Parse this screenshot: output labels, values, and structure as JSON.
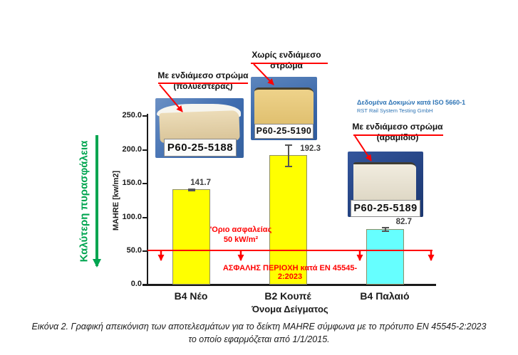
{
  "chart_data": {
    "type": "bar",
    "categories": [
      "B4 Νέο",
      "B2 Κουπέ",
      "B4 Παλαιό"
    ],
    "values": [
      141.7,
      192.3,
      82.7
    ],
    "error_bars": [
      2,
      17,
      4
    ],
    "bar_colors": [
      "#FFFF00",
      "#FFFF00",
      "#66FFFF"
    ],
    "xlabel": "Όνομα Δείγματος",
    "ylabel": "MAHRE [kw/m2]",
    "ylim": [
      0,
      250
    ],
    "yticks": [
      "250.0",
      "200.0",
      "150.0",
      "100.0",
      "50.0",
      "0.0"
    ],
    "grid": "off",
    "legend": "none",
    "safety_line": {
      "value": 50,
      "label_line1": "'Οριο ασφαλείας",
      "label_line2": "50 kW/m²",
      "region_label": "ΑΣΦΑΛΗΣ ΠΕΡΙΟΧΗ κατά EN 45545-2:2023"
    }
  },
  "annotations": {
    "better_fire_safety": "Καλύτερη πυρασφάλεια",
    "callout_polyester": {
      "line1": "Με ενδιάμεσο στρώμα",
      "line2": "(πολυεστέρας)"
    },
    "callout_none": {
      "line1": "Χωρίς ενδιάμεσο",
      "line2": "στρώμα"
    },
    "callout_aramid": {
      "line1": "Με ενδιάμεσο στρώμα",
      "line2": "(αραμίδιο)"
    },
    "test_info": {
      "line1": "Δεδομένα Δοκιμών κατά ISO 5660-1",
      "line2": "RST Rail System Testing GmbH"
    }
  },
  "photos": {
    "polyester": {
      "tag": "P60-25-5188"
    },
    "no_layer": {
      "tag": "P60-25-5190"
    },
    "aramid": {
      "tag": "P60-25-5189"
    }
  },
  "caption": {
    "line1": "Εικόνα 2. Γραφική απεικόνιση των αποτελεσμάτων για το δείκτη MAHRE σύμφωνα με το πρότυπο EN 45545-2:2023",
    "line2": "το οποίο εφαρμόζεται από 1/1/2015."
  },
  "colors": {
    "safety_red": "#FF0000",
    "fire_safety_green": "#00A550",
    "info_blue": "#2E74B5",
    "bar_yellow": "#FFFF00",
    "bar_cyan": "#66FFFF"
  }
}
